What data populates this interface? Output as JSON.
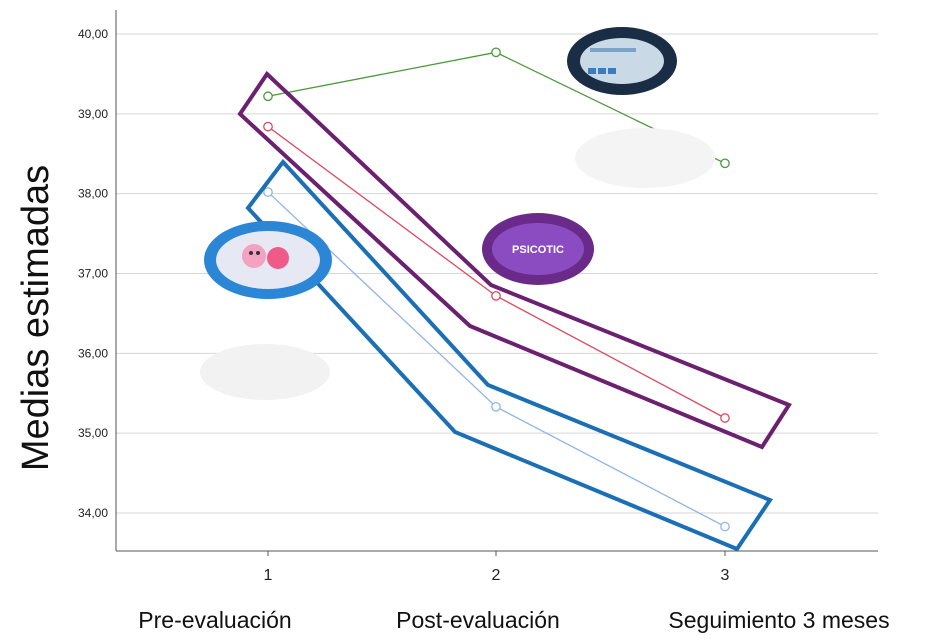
{
  "chart_data": {
    "type": "line",
    "ylabel": "Medias estimadas",
    "xlabel": "",
    "x": [
      1,
      2,
      3
    ],
    "x_tick_labels": [
      "1",
      "2",
      "3"
    ],
    "category_labels": [
      "Pre-evaluación",
      "Post-evaluación",
      "Seguimiento 3 meses"
    ],
    "y_ticks": [
      "34,00",
      "35,00",
      "36,00",
      "37,00",
      "38,00",
      "39,00",
      "40,00"
    ],
    "y_tick_values": [
      34,
      35,
      36,
      37,
      38,
      39,
      40
    ],
    "ylim": [
      33.5,
      40.3
    ],
    "grid": true,
    "series": [
      {
        "color": "#4a9a3a",
        "values": [
          39.22,
          39.77,
          38.38
        ]
      },
      {
        "color": "#e0485e",
        "values": [
          38.84,
          36.72,
          35.19
        ]
      },
      {
        "color": "#8fb6e6",
        "values": [
          38.02,
          35.33,
          33.83
        ]
      }
    ],
    "highlight_colors": {
      "red_group": "#6b2070",
      "blue_group": "#1a6fb5"
    }
  },
  "badges": {
    "psicotic_text": "PSICOTIC"
  }
}
